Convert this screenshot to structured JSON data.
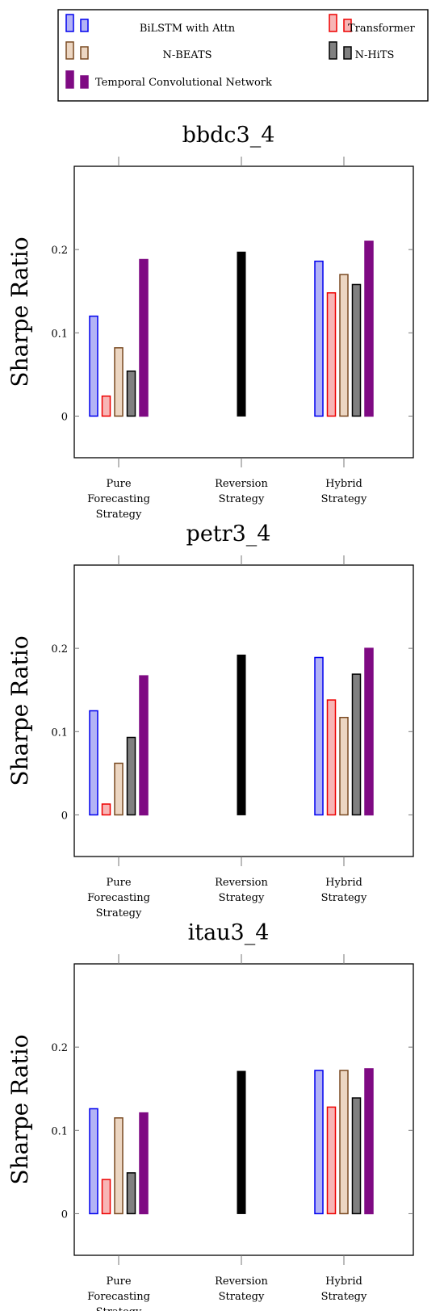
{
  "legend": {
    "entries": [
      {
        "label": "BiLSTM with Attn",
        "fill": "#b3b3f5",
        "stroke": "#0000ee"
      },
      {
        "label": "Transformer",
        "fill": "#f7b5b5",
        "stroke": "#ee0000"
      },
      {
        "label": "N-BEATS",
        "fill": "#ecd6c2",
        "stroke": "#7a4a22"
      },
      {
        "label": "N-HiTS",
        "fill": "#808080",
        "stroke": "#000000"
      },
      {
        "label": "Temporal Convolutional Network",
        "fill": "#7f0a83",
        "stroke": "#7f0a83"
      }
    ]
  },
  "reversion_color": "#000000",
  "chart_data": [
    {
      "type": "bar",
      "title": "bbdc3_4",
      "ylabel": "Sharpe Ratio",
      "ylim": [
        -0.05,
        0.3
      ],
      "yticks": [
        0,
        0.1,
        0.2
      ],
      "yticklabels": [
        "0",
        "0.1",
        "0.2"
      ],
      "categories": [
        "Pure\nForecasting\nStrategy",
        "Reversion\nStrategy",
        "Hybrid\nStrategy"
      ],
      "series": [
        {
          "name": "BiLSTM with Attn",
          "values": [
            0.12,
            null,
            0.186
          ]
        },
        {
          "name": "Transformer",
          "values": [
            0.024,
            null,
            0.148
          ]
        },
        {
          "name": "N-BEATS",
          "values": [
            0.082,
            null,
            0.17
          ]
        },
        {
          "name": "N-HiTS",
          "values": [
            0.054,
            null,
            0.158
          ]
        },
        {
          "name": "Temporal Convolutional Network",
          "values": [
            0.188,
            null,
            0.21
          ]
        }
      ],
      "reversion_value": 0.197
    },
    {
      "type": "bar",
      "title": "petr3_4",
      "ylabel": "Sharpe Ratio",
      "ylim": [
        -0.05,
        0.3
      ],
      "yticks": [
        0,
        0.1,
        0.2
      ],
      "yticklabels": [
        "0",
        "0.1",
        "0.2"
      ],
      "categories": [
        "Pure\nForecasting\nStrategy",
        "Reversion\nStrategy",
        "Hybrid\nStrategy"
      ],
      "series": [
        {
          "name": "BiLSTM with Attn",
          "values": [
            0.125,
            null,
            0.189
          ]
        },
        {
          "name": "Transformer",
          "values": [
            0.013,
            null,
            0.138
          ]
        },
        {
          "name": "N-BEATS",
          "values": [
            0.062,
            null,
            0.117
          ]
        },
        {
          "name": "N-HiTS",
          "values": [
            0.093,
            null,
            0.169
          ]
        },
        {
          "name": "Temporal Convolutional Network",
          "values": [
            0.167,
            null,
            0.2
          ]
        }
      ],
      "reversion_value": 0.192
    },
    {
      "type": "bar",
      "title": "itau3_4",
      "ylabel": "Sharpe Ratio",
      "ylim": [
        -0.05,
        0.3
      ],
      "yticks": [
        0,
        0.1,
        0.2
      ],
      "yticklabels": [
        "0",
        "0.1",
        "0.2"
      ],
      "categories": [
        "Pure\nForecasting\nStrategy",
        "Reversion\nStrategy",
        "Hybrid\nStrategy"
      ],
      "series": [
        {
          "name": "BiLSTM with Attn",
          "values": [
            0.126,
            null,
            0.172
          ]
        },
        {
          "name": "Transformer",
          "values": [
            0.041,
            null,
            0.128
          ]
        },
        {
          "name": "N-BEATS",
          "values": [
            0.115,
            null,
            0.172
          ]
        },
        {
          "name": "N-HiTS",
          "values": [
            0.049,
            null,
            0.139
          ]
        },
        {
          "name": "Temporal Convolutional Network",
          "values": [
            0.121,
            null,
            0.174
          ]
        }
      ],
      "reversion_value": 0.171
    }
  ]
}
